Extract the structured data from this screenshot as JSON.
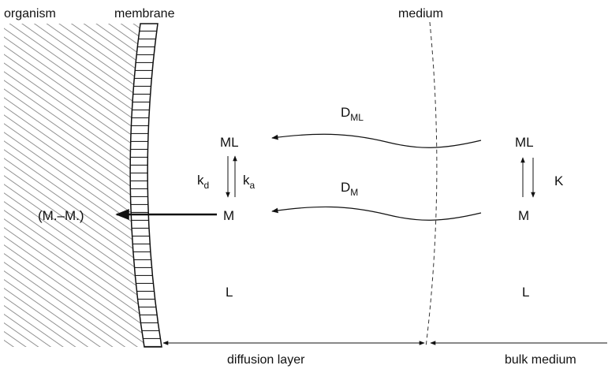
{
  "labels": {
    "organism": "organism",
    "membrane": "membrane",
    "medium": "medium"
  },
  "diffusion_layer_side": {
    "d_ml": {
      "main": "D",
      "sub": "ML"
    },
    "d_m": {
      "main": "D",
      "sub": "M"
    },
    "ml": "ML",
    "k_d": {
      "main": "k",
      "sub": "d"
    },
    "k_a": {
      "main": "k",
      "sub": "a"
    },
    "m": "M",
    "l": "L",
    "complex": "(M.–M.)"
  },
  "bulk_side": {
    "ml": "ML",
    "k": "K",
    "m": "M",
    "l": "L"
  },
  "footer": {
    "diffusion_layer": "diffusion layer",
    "bulk_medium": "bulk medium"
  }
}
